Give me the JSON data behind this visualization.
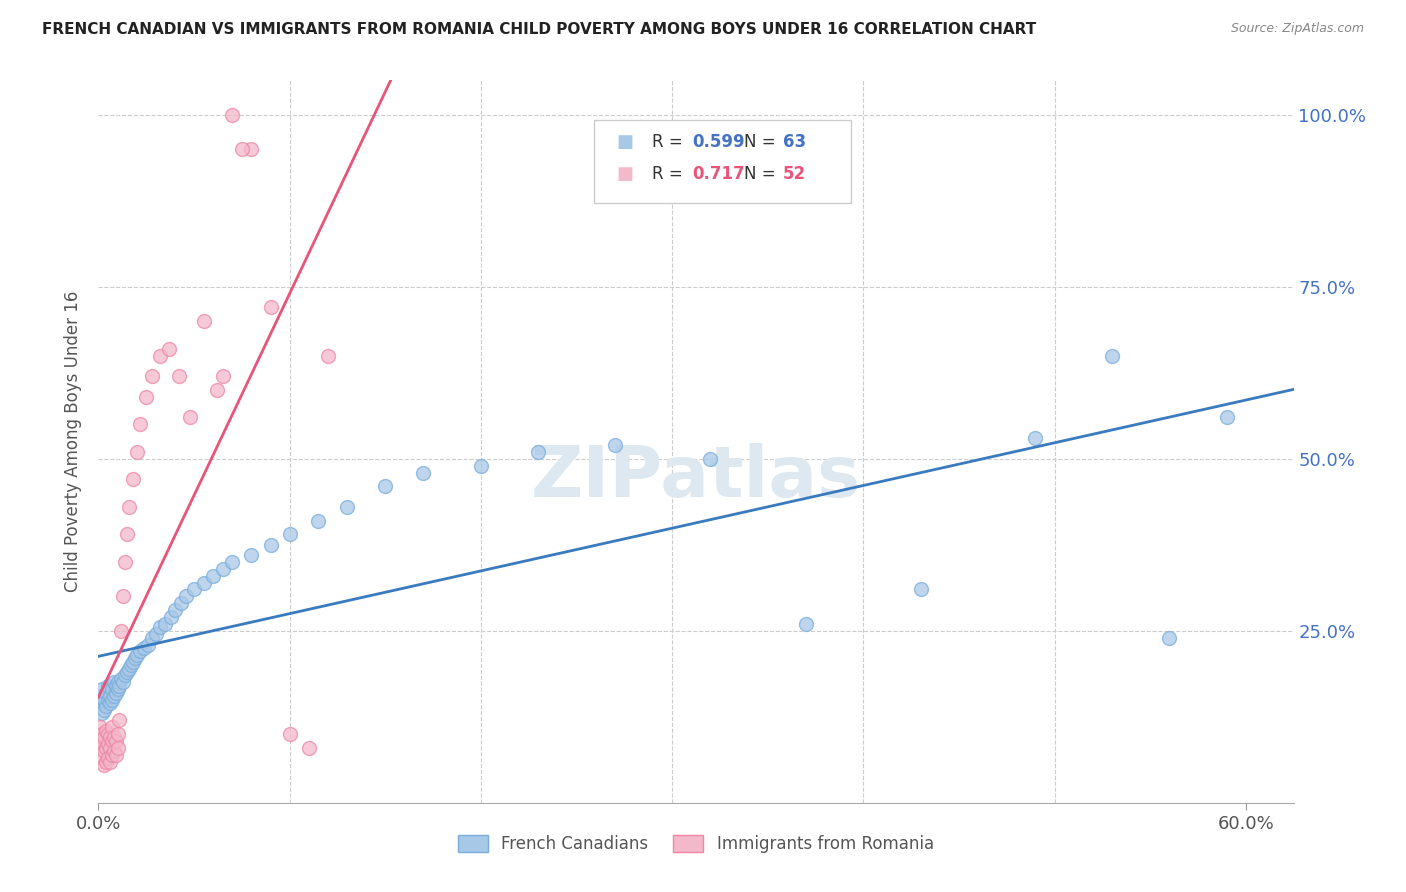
{
  "title": "FRENCH CANADIAN VS IMMIGRANTS FROM ROMANIA CHILD POVERTY AMONG BOYS UNDER 16 CORRELATION CHART",
  "source": "Source: ZipAtlas.com",
  "ylabel": "Child Poverty Among Boys Under 16",
  "legend_label1": "French Canadians",
  "legend_label2": "Immigrants from Romania",
  "blue_color": "#a8c8e8",
  "blue_edge_color": "#7aadda",
  "pink_color": "#f4b8cb",
  "pink_edge_color": "#ee86a4",
  "blue_line_color": "#3a7abf",
  "pink_line_color": "#e8547a",
  "watermark": "ZIPatlas",
  "blue_r": 0.599,
  "blue_n": 63,
  "pink_r": 0.717,
  "pink_n": 52,
  "blue_scatter_x": [
    0.001,
    0.001,
    0.002,
    0.002,
    0.003,
    0.003,
    0.004,
    0.004,
    0.005,
    0.005,
    0.006,
    0.006,
    0.007,
    0.007,
    0.008,
    0.008,
    0.009,
    0.009,
    0.01,
    0.01,
    0.011,
    0.012,
    0.013,
    0.014,
    0.015,
    0.016,
    0.017,
    0.018,
    0.019,
    0.02,
    0.022,
    0.024,
    0.026,
    0.028,
    0.03,
    0.032,
    0.035,
    0.038,
    0.04,
    0.043,
    0.046,
    0.05,
    0.055,
    0.06,
    0.065,
    0.07,
    0.08,
    0.09,
    0.1,
    0.115,
    0.13,
    0.15,
    0.17,
    0.2,
    0.23,
    0.27,
    0.32,
    0.37,
    0.43,
    0.49,
    0.53,
    0.56,
    0.59
  ],
  "blue_scatter_y": [
    0.145,
    0.155,
    0.13,
    0.165,
    0.135,
    0.15,
    0.14,
    0.16,
    0.15,
    0.17,
    0.145,
    0.155,
    0.15,
    0.165,
    0.155,
    0.175,
    0.16,
    0.17,
    0.165,
    0.175,
    0.17,
    0.18,
    0.175,
    0.185,
    0.19,
    0.195,
    0.2,
    0.205,
    0.21,
    0.215,
    0.22,
    0.225,
    0.23,
    0.24,
    0.245,
    0.255,
    0.26,
    0.27,
    0.28,
    0.29,
    0.3,
    0.31,
    0.32,
    0.33,
    0.34,
    0.35,
    0.36,
    0.375,
    0.39,
    0.41,
    0.43,
    0.46,
    0.48,
    0.49,
    0.51,
    0.52,
    0.5,
    0.26,
    0.31,
    0.53,
    0.65,
    0.24,
    0.56
  ],
  "pink_scatter_x": [
    0.001,
    0.001,
    0.001,
    0.002,
    0.002,
    0.002,
    0.003,
    0.003,
    0.003,
    0.004,
    0.004,
    0.004,
    0.005,
    0.005,
    0.005,
    0.006,
    0.006,
    0.006,
    0.007,
    0.007,
    0.007,
    0.008,
    0.008,
    0.009,
    0.009,
    0.01,
    0.01,
    0.011,
    0.012,
    0.013,
    0.014,
    0.015,
    0.016,
    0.018,
    0.02,
    0.022,
    0.025,
    0.028,
    0.032,
    0.037,
    0.042,
    0.048,
    0.055,
    0.062,
    0.07,
    0.08,
    0.09,
    0.1,
    0.11,
    0.12,
    0.065,
    0.075
  ],
  "pink_scatter_y": [
    0.08,
    0.095,
    0.11,
    0.065,
    0.085,
    0.1,
    0.055,
    0.075,
    0.095,
    0.06,
    0.08,
    0.105,
    0.065,
    0.085,
    0.1,
    0.06,
    0.08,
    0.095,
    0.07,
    0.09,
    0.11,
    0.075,
    0.095,
    0.07,
    0.09,
    0.08,
    0.1,
    0.12,
    0.25,
    0.3,
    0.35,
    0.39,
    0.43,
    0.47,
    0.51,
    0.55,
    0.59,
    0.62,
    0.65,
    0.66,
    0.62,
    0.56,
    0.7,
    0.6,
    1.0,
    0.95,
    0.72,
    0.1,
    0.08,
    0.65,
    0.62,
    0.95
  ],
  "xlim": [
    0.0,
    0.625
  ],
  "ylim": [
    0.0,
    1.05
  ],
  "yticks": [
    0.25,
    0.5,
    0.75,
    1.0
  ],
  "xticks": [
    0.0,
    0.6
  ],
  "figsize": [
    14.06,
    8.92
  ],
  "dpi": 100
}
